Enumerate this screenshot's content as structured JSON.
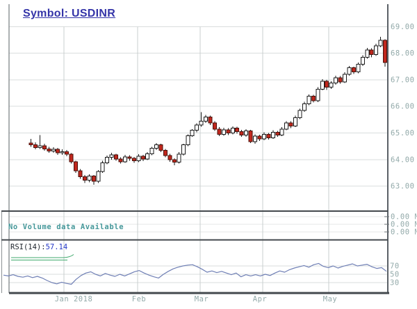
{
  "title": "Symbol: USDINR",
  "colors": {
    "background": "#ffffff",
    "title": "#3434a8",
    "axis_border": "#5a6066",
    "separator": "#43484d",
    "grid_light": "#d9dddd",
    "grid_month": "#c9cfcf",
    "grid_faint": "#e4e7e7",
    "label": "#92a9a9",
    "volume_message": "#46989a",
    "rsi_label": "#20262e",
    "rsi_value": "#2438c8",
    "rsi_line": "#6f7fb5",
    "candle_up_fill": "#ffffff",
    "candle_up_stroke": "#1a1a1a",
    "candle_down_fill": "#c1271d",
    "candle_down_stroke": "#4a100a",
    "wick": "#1a1a1a",
    "green_marker": "#3fa96c",
    "tick": "#6b7075"
  },
  "main_panel": {
    "y_tick_labels": [
      "69.00",
      "68.00",
      "67.00",
      "66.00",
      "65.00",
      "64.00",
      "63.00"
    ]
  },
  "volume_panel": {
    "message": "No Volume data Available",
    "axis_labels": [
      "0.00 M",
      "0.00 M",
      "0.00 M"
    ]
  },
  "rsi_panel": {
    "label": "RSI(14):",
    "value": "57.14",
    "scale_labels": [
      "70",
      "50",
      "30"
    ]
  },
  "x_axis": {
    "labels": [
      "Jan 2018",
      "Feb",
      "Mar",
      "Apr",
      "May"
    ]
  },
  "chart_data": {
    "type": "candlestick",
    "symbol": "USDINR",
    "title": "Symbol: USDINR",
    "x_range": [
      "Jan 2018",
      "May 2018"
    ],
    "x_gridline_labels": [
      "Jan 2018",
      "Feb",
      "Mar",
      "Apr",
      "May"
    ],
    "y_ticks": [
      69,
      68,
      67,
      66,
      65,
      64,
      63
    ],
    "ylim": [
      62.1,
      70.0
    ],
    "grid": true,
    "candles_ohlc": [
      [
        64.62,
        64.78,
        64.48,
        64.55
      ],
      [
        64.55,
        64.65,
        64.38,
        64.45
      ],
      [
        64.45,
        64.92,
        64.4,
        64.52
      ],
      [
        64.52,
        64.6,
        64.33,
        64.4
      ],
      [
        64.4,
        64.48,
        64.25,
        64.32
      ],
      [
        64.32,
        64.46,
        64.26,
        64.38
      ],
      [
        64.38,
        64.44,
        64.18,
        64.25
      ],
      [
        64.25,
        64.38,
        64.18,
        64.3
      ],
      [
        64.3,
        64.36,
        64.12,
        64.2
      ],
      [
        64.2,
        64.24,
        63.85,
        63.92
      ],
      [
        63.92,
        63.96,
        63.5,
        63.58
      ],
      [
        63.58,
        63.64,
        63.28,
        63.35
      ],
      [
        63.35,
        63.42,
        63.12,
        63.22
      ],
      [
        63.22,
        63.45,
        63.15,
        63.38
      ],
      [
        63.38,
        63.42,
        63.05,
        63.18
      ],
      [
        63.18,
        63.6,
        63.12,
        63.55
      ],
      [
        63.55,
        63.95,
        63.5,
        63.88
      ],
      [
        63.88,
        64.15,
        63.82,
        64.08
      ],
      [
        64.08,
        64.25,
        64.0,
        64.18
      ],
      [
        64.18,
        64.22,
        63.95,
        64.02
      ],
      [
        64.02,
        64.08,
        63.85,
        63.92
      ],
      [
        63.92,
        64.18,
        63.88,
        64.1
      ],
      [
        64.1,
        64.16,
        63.95,
        64.05
      ],
      [
        64.05,
        64.1,
        63.88,
        63.95
      ],
      [
        63.95,
        64.2,
        63.9,
        64.12
      ],
      [
        64.12,
        64.18,
        63.94,
        64.02
      ],
      [
        64.02,
        64.28,
        63.98,
        64.22
      ],
      [
        64.22,
        64.48,
        64.16,
        64.42
      ],
      [
        64.42,
        64.62,
        64.36,
        64.55
      ],
      [
        64.55,
        64.6,
        64.28,
        64.35
      ],
      [
        64.35,
        64.4,
        64.08,
        64.15
      ],
      [
        64.15,
        64.22,
        63.92,
        64.0
      ],
      [
        64.0,
        64.05,
        63.78,
        63.9
      ],
      [
        63.9,
        64.28,
        63.85,
        64.2
      ],
      [
        64.2,
        64.6,
        64.15,
        64.55
      ],
      [
        64.55,
        64.95,
        64.5,
        64.9
      ],
      [
        64.9,
        65.15,
        64.85,
        65.1
      ],
      [
        65.1,
        65.36,
        65.02,
        65.3
      ],
      [
        65.3,
        65.78,
        65.24,
        65.45
      ],
      [
        65.45,
        65.68,
        65.38,
        65.6
      ],
      [
        65.6,
        65.65,
        65.3,
        65.38
      ],
      [
        65.38,
        65.44,
        65.08,
        65.15
      ],
      [
        65.15,
        65.22,
        64.88,
        64.95
      ],
      [
        64.95,
        65.2,
        64.9,
        65.12
      ],
      [
        65.12,
        65.18,
        64.92,
        65.0
      ],
      [
        65.0,
        65.25,
        64.95,
        65.18
      ],
      [
        65.18,
        65.24,
        64.98,
        65.05
      ],
      [
        65.05,
        65.12,
        64.85,
        64.92
      ],
      [
        64.92,
        65.15,
        64.86,
        65.08
      ],
      [
        65.08,
        65.12,
        64.62,
        64.68
      ],
      [
        64.68,
        64.95,
        64.6,
        64.88
      ],
      [
        64.88,
        64.94,
        64.7,
        64.78
      ],
      [
        64.78,
        65.02,
        64.72,
        64.95
      ],
      [
        64.95,
        65.0,
        64.75,
        64.82
      ],
      [
        64.82,
        65.1,
        64.78,
        65.02
      ],
      [
        65.02,
        65.08,
        64.85,
        64.92
      ],
      [
        64.92,
        65.22,
        64.88,
        65.15
      ],
      [
        65.15,
        65.45,
        65.1,
        65.38
      ],
      [
        65.38,
        65.44,
        65.18,
        65.26
      ],
      [
        65.26,
        65.65,
        65.22,
        65.58
      ],
      [
        65.58,
        65.92,
        65.52,
        65.85
      ],
      [
        65.85,
        66.18,
        65.8,
        66.1
      ],
      [
        66.1,
        66.45,
        66.05,
        66.38
      ],
      [
        66.38,
        66.44,
        66.15,
        66.22
      ],
      [
        66.22,
        66.72,
        66.16,
        66.65
      ],
      [
        66.65,
        67.02,
        66.6,
        66.95
      ],
      [
        66.95,
        67.0,
        66.62,
        66.72
      ],
      [
        66.72,
        66.95,
        66.66,
        66.88
      ],
      [
        66.88,
        67.15,
        66.82,
        67.08
      ],
      [
        67.08,
        67.14,
        66.85,
        66.92
      ],
      [
        66.92,
        67.28,
        66.88,
        67.2
      ],
      [
        67.2,
        67.52,
        67.15,
        67.45
      ],
      [
        67.45,
        67.5,
        67.22,
        67.3
      ],
      [
        67.3,
        67.65,
        67.25,
        67.58
      ],
      [
        67.58,
        67.92,
        67.52,
        67.85
      ],
      [
        67.85,
        68.2,
        67.8,
        68.12
      ],
      [
        68.12,
        68.18,
        67.85,
        67.95
      ],
      [
        67.95,
        68.35,
        67.9,
        68.28
      ],
      [
        68.28,
        68.62,
        68.22,
        68.48
      ],
      [
        68.48,
        68.52,
        67.5,
        67.65
      ]
    ],
    "volume": {
      "available": false,
      "message": "No Volume data Available",
      "axis_values": [
        "0.00 M",
        "0.00 M",
        "0.00 M"
      ]
    },
    "rsi": {
      "period": 14,
      "current": 57.14,
      "levels": [
        70,
        50,
        30
      ],
      "values": [
        48,
        46,
        49,
        45,
        43,
        46,
        42,
        45,
        41,
        35,
        30,
        27,
        31,
        28,
        26,
        38,
        47,
        53,
        56,
        50,
        46,
        52,
        48,
        45,
        50,
        46,
        51,
        56,
        59,
        53,
        48,
        44,
        41,
        50,
        57,
        63,
        67,
        70,
        72,
        73,
        68,
        62,
        55,
        58,
        54,
        57,
        53,
        49,
        53,
        44,
        49,
        46,
        49,
        46,
        50,
        47,
        53,
        58,
        55,
        61,
        65,
        68,
        71,
        67,
        73,
        76,
        69,
        66,
        70,
        65,
        69,
        72,
        75,
        70,
        72,
        74,
        68,
        64,
        66,
        57.14
      ]
    }
  }
}
